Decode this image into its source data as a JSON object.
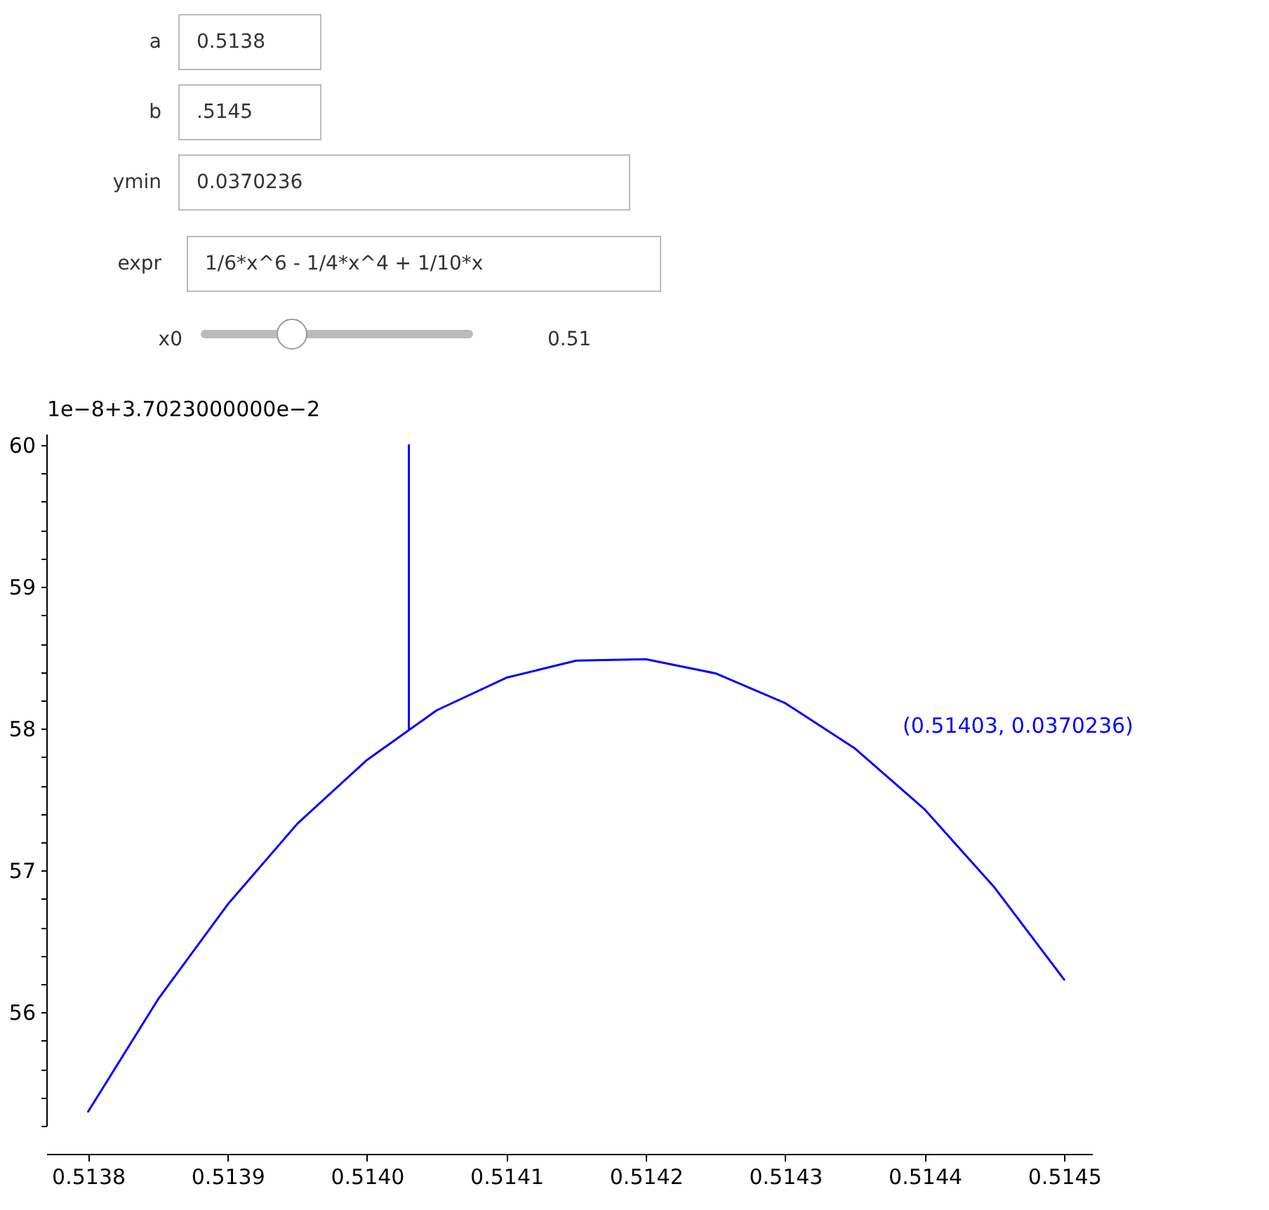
{
  "chart_data": [
    {
      "type": "other",
      "annotations": [
        "a",
        "0.5138",
        "b",
        ".5145",
        "ymin",
        "0.0370236",
        "expr",
        "1/6*x^6 - 1/4*x^4 + 1/10*x",
        "x0",
        "0.51"
      ]
    },
    {
      "type": "line",
      "ylabel": "1e−8+3.7023000000e−2",
      "annotations": [
        "(0.51403, 0.0370236)"
      ],
      "series": [
        {
          "color": "#0000ff",
          "x": [
            0.5138,
            0.51385,
            0.5139,
            0.51395,
            0.514,
            0.51405,
            0.5141,
            0.51415,
            0.5142,
            0.51425,
            0.5143,
            0.51435,
            0.5144,
            0.51445,
            0.5145
          ],
          "values": [
            55.3,
            56.09,
            56.76,
            57.33,
            57.78,
            58.13,
            58.36,
            58.48,
            58.49,
            58.39,
            58.18,
            57.86,
            57.43,
            56.88,
            56.23
          ]
        },
        {
          "color": "#0000ff",
          "x": [
            0.51403,
            0.51403
          ],
          "values": [
            58,
            60
          ]
        }
      ],
      "xlim": [
        0.51377,
        0.51452
      ],
      "ylim": [
        55.2,
        60.08
      ],
      "xticks": [
        0.5138,
        0.5139,
        {
          "value": 0.514,
          "label": "0.5140"
        },
        0.5141,
        0.5142,
        0.5143,
        0.5144,
        0.5145
      ],
      "yticks": [
        {
          "value": 55.2,
          "label": null
        },
        {
          "value": 55.4,
          "label": null
        },
        {
          "value": 55.6,
          "label": null
        },
        {
          "value": 55.8,
          "label": null
        },
        56,
        {
          "value": 56.2,
          "label": null
        },
        {
          "value": 56.4,
          "label": null
        },
        {
          "value": 56.6,
          "label": null
        },
        {
          "value": 56.8,
          "label": null
        },
        57,
        {
          "value": 57.2,
          "label": null
        },
        {
          "value": 57.4,
          "label": null
        },
        {
          "value": 57.6,
          "label": null
        },
        {
          "value": 57.8,
          "label": null
        },
        58,
        {
          "value": 58.2,
          "label": null
        },
        {
          "value": 58.4,
          "label": null
        },
        {
          "value": 58.6,
          "label": null
        },
        {
          "value": 58.8,
          "label": null
        },
        59,
        {
          "value": 59.2,
          "label": null
        },
        {
          "value": 59.4,
          "label": null
        },
        {
          "value": 59.6,
          "label": null
        },
        {
          "value": 59.8,
          "label": null
        },
        60
      ],
      "grid": false
    }
  ]
}
